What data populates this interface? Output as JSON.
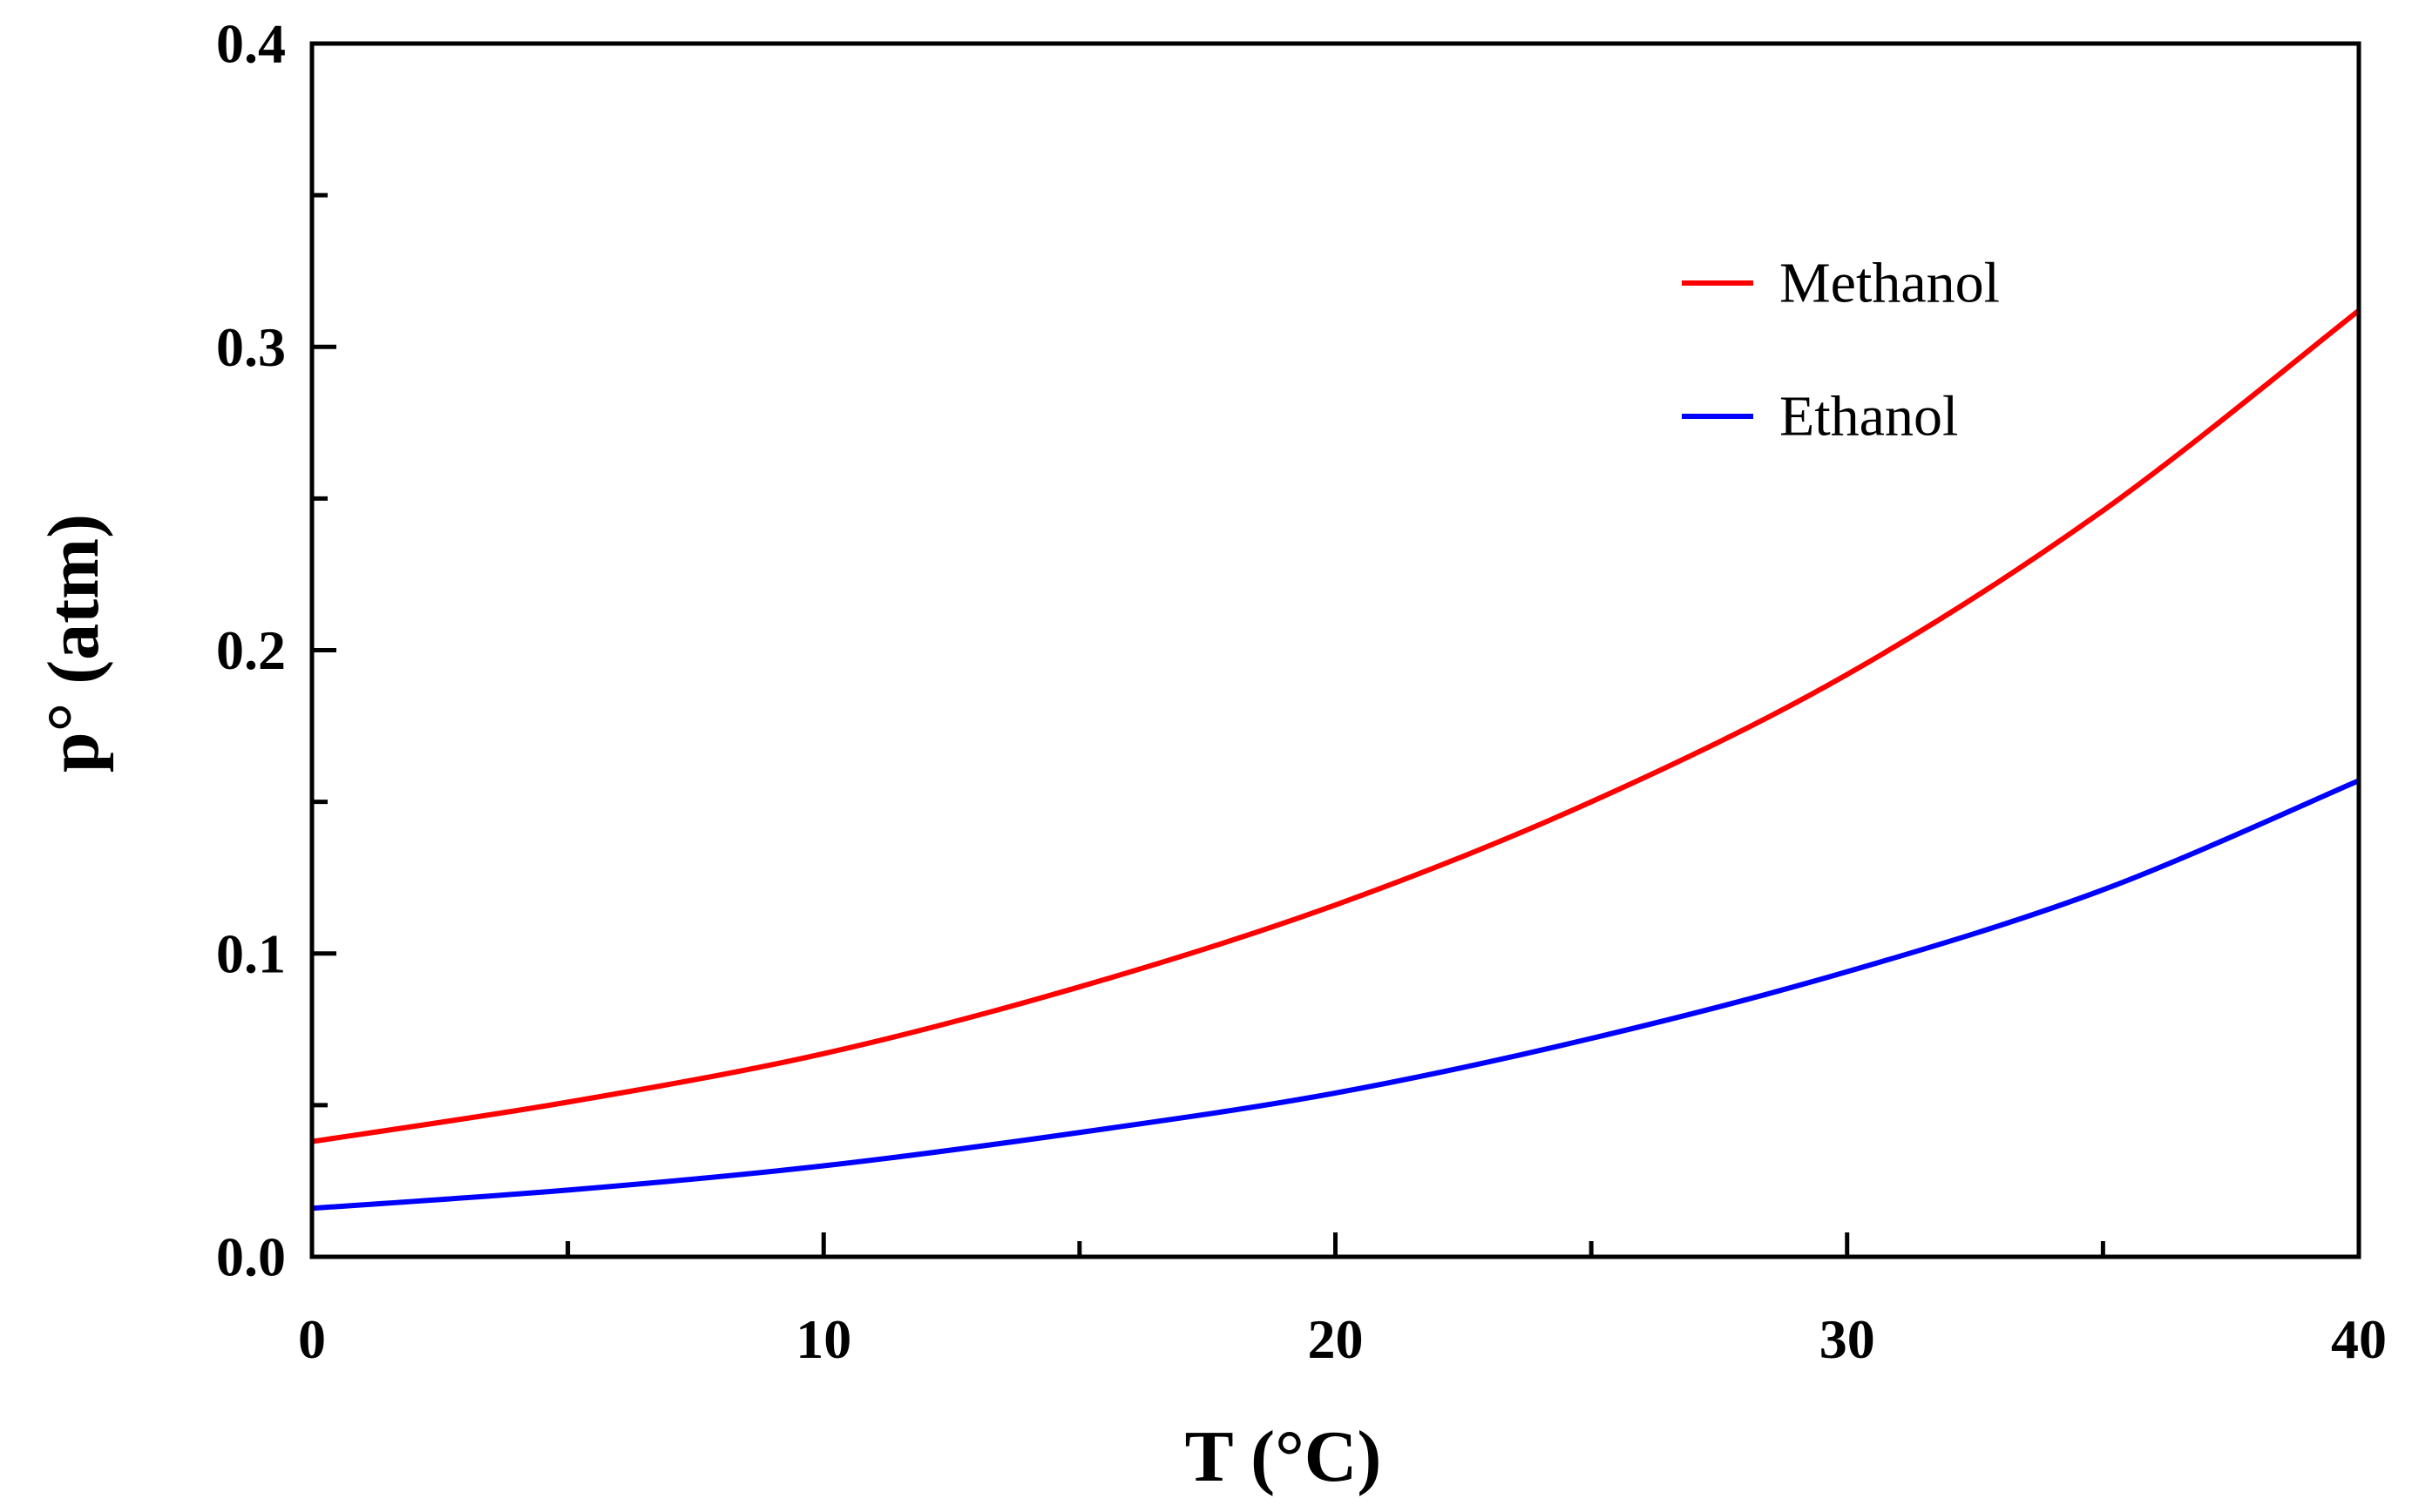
{
  "chart_data": {
    "type": "line",
    "title": "",
    "xlabel": "T (°C)",
    "ylabel": "p° (atm)",
    "xlim": [
      0,
      40
    ],
    "ylim": [
      0,
      0.4
    ],
    "xticks": [
      0,
      10,
      20,
      30,
      40
    ],
    "xtick_labels": [
      "0",
      "10",
      "20",
      "30",
      "40"
    ],
    "yticks": [
      0.0,
      0.1,
      0.2,
      0.3,
      0.4
    ],
    "ytick_labels": [
      "0.0",
      "0.1",
      "0.2",
      "0.3",
      "0.4"
    ],
    "x_minor_step": 5,
    "y_minor_step": 0.05,
    "grid": false,
    "legend_position": "top-right",
    "x": [
      0,
      5,
      10,
      15,
      20,
      25,
      30,
      35,
      40
    ],
    "series": [
      {
        "name": "Methanol",
        "color": "#ff0000",
        "values": [
          0.038,
          0.051,
          0.067,
          0.089,
          0.116,
          0.15,
          0.192,
          0.246,
          0.312
        ]
      },
      {
        "name": "Ethanol",
        "color": "#0000ff",
        "values": [
          0.016,
          0.022,
          0.03,
          0.041,
          0.054,
          0.072,
          0.094,
          0.121,
          0.157
        ]
      }
    ]
  }
}
